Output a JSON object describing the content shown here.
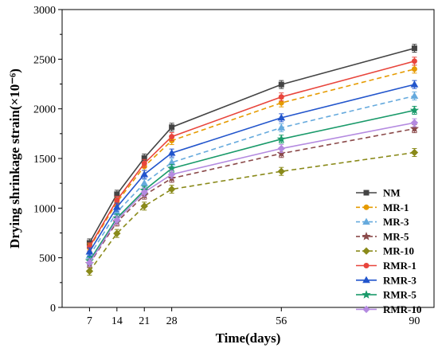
{
  "chart_data": {
    "type": "line",
    "xlabel": "Time(days)",
    "ylabel": "Drying shrinkage strain(×10⁻⁶)",
    "xlim": [
      0,
      95
    ],
    "ylim": [
      0,
      3000
    ],
    "x": [
      7,
      14,
      21,
      28,
      56,
      90
    ],
    "xticks": [
      "7",
      "14",
      "21",
      "28",
      "56",
      "90"
    ],
    "yticks": [
      "0",
      "500",
      "1000",
      "1500",
      "2000",
      "2500",
      "3000"
    ],
    "legend_position": "bottom-right",
    "grid": false,
    "series": [
      {
        "name": "NM",
        "color": "#444444",
        "dash": "solid",
        "marker": "square",
        "values": [
          650,
          1140,
          1505,
          1815,
          2245,
          2610
        ]
      },
      {
        "name": "MR-1",
        "color": "#e69b00",
        "dash": "dash",
        "marker": "circle",
        "values": [
          600,
          1060,
          1420,
          1680,
          2060,
          2400
        ]
      },
      {
        "name": "MR-3",
        "color": "#66aadd",
        "dash": "dash",
        "marker": "triangle",
        "values": [
          520,
          960,
          1250,
          1460,
          1810,
          2130
        ]
      },
      {
        "name": "MR-5",
        "color": "#8b4a4a",
        "dash": "dash",
        "marker": "star",
        "values": [
          440,
          860,
          1130,
          1300,
          1550,
          1800
        ]
      },
      {
        "name": "MR-10",
        "color": "#8a8a1a",
        "dash": "dash",
        "marker": "diamond",
        "values": [
          365,
          745,
          1020,
          1190,
          1370,
          1560
        ]
      },
      {
        "name": "RMR-1",
        "color": "#e8453c",
        "dash": "solid",
        "marker": "circle",
        "values": [
          610,
          1080,
          1450,
          1720,
          2120,
          2480
        ]
      },
      {
        "name": "RMR-3",
        "color": "#2255cc",
        "dash": "solid",
        "marker": "triangle",
        "values": [
          560,
          1010,
          1340,
          1555,
          1910,
          2245
        ]
      },
      {
        "name": "RMR-5",
        "color": "#1a9a6a",
        "dash": "solid",
        "marker": "star",
        "values": [
          470,
          900,
          1180,
          1400,
          1695,
          1985
        ]
      },
      {
        "name": "RMR-10",
        "color": "#b48ae0",
        "dash": "solid",
        "marker": "diamond",
        "values": [
          450,
          880,
          1160,
          1340,
          1600,
          1860
        ]
      }
    ]
  }
}
